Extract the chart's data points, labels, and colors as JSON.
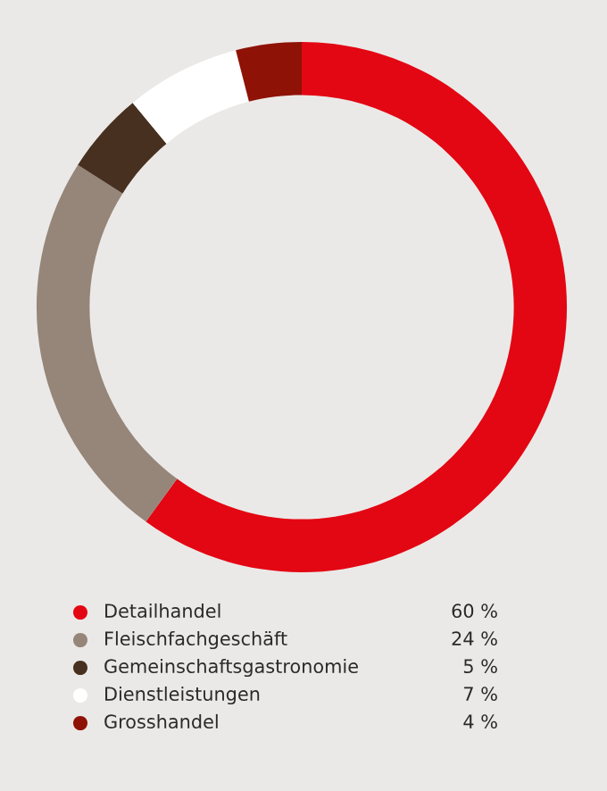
{
  "chart_data": {
    "type": "donut",
    "categories": [
      "Detailhandel",
      "Fleischfachgeschäft",
      "Gemeinschaftsgastronomie",
      "Dienstleistungen",
      "Grosshandel"
    ],
    "values": [
      60,
      24,
      5,
      7,
      4
    ],
    "colors": [
      "#e30613",
      "#958679",
      "#47301f",
      "#ffffff",
      "#8e1206"
    ],
    "value_labels": [
      "60 %",
      "24 %",
      "5 %",
      "7 %",
      "4 %"
    ],
    "legend": "bottom"
  }
}
